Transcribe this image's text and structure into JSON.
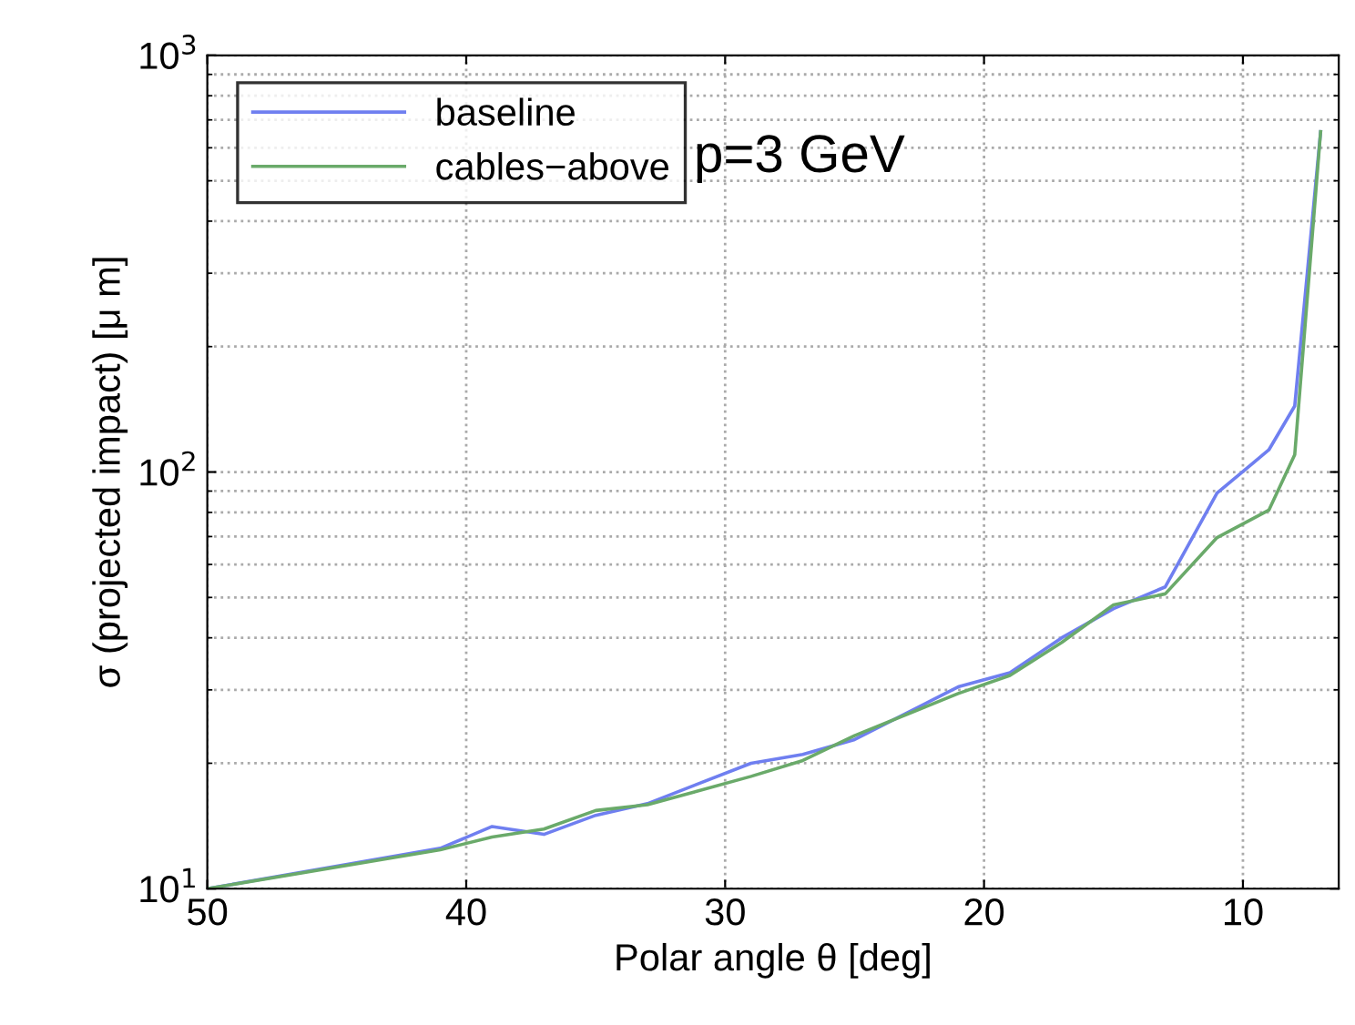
{
  "chart_data": {
    "type": "line",
    "xlabel": "Polar angle θ [deg]",
    "ylabel": "σ (projected impact) [μ m]",
    "annotations": [
      "p=3 GeV"
    ],
    "log": "y",
    "grid": true,
    "legend": "top left",
    "xlim": [
      50,
      6.3
    ],
    "xticks": [
      50,
      40,
      30,
      20,
      10
    ],
    "ylim": [
      10,
      1000
    ],
    "yticks": [
      {
        "value": 10,
        "label": "10$^{1}$"
      },
      {
        "value": 100,
        "label": "10$^{2}$"
      },
      {
        "value": 1000,
        "label": "10$^{3}$"
      }
    ],
    "x": [
      50,
      41,
      39,
      37,
      35,
      33,
      29,
      27,
      25,
      21,
      19,
      17,
      15,
      13,
      11,
      9,
      8,
      7
    ],
    "series": [
      {
        "name": "baseline",
        "color": "#6f7ff0",
        "values": [
          10,
          12.5,
          14.1,
          13.5,
          15,
          16,
          20,
          21,
          22.8,
          30.5,
          33,
          40,
          47,
          53,
          89,
          113,
          144,
          656
        ]
      },
      {
        "name": "cables−above",
        "color": "#6aaa6a",
        "values": [
          10,
          12.4,
          13.3,
          13.9,
          15.4,
          15.9,
          18.6,
          20.3,
          23.3,
          29.4,
          32.5,
          39,
          48,
          51,
          69.6,
          81,
          110,
          656
        ]
      }
    ]
  }
}
